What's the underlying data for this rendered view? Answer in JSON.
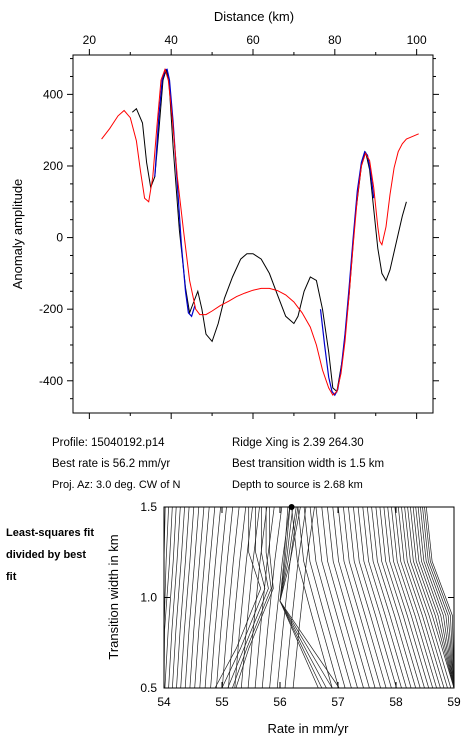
{
  "chart_data": [
    {
      "type": "line",
      "title": "",
      "xlabel": "Distance (km)",
      "ylabel": "Anomaly amplitude",
      "xlim": [
        16,
        104
      ],
      "ylim": [
        -490,
        510
      ],
      "xticks": [
        20,
        40,
        60,
        80,
        100
      ],
      "yticks": [
        -400,
        -200,
        0,
        200,
        400
      ],
      "x_axis_position": "top",
      "grid": false,
      "series": [
        {
          "color": "#000000",
          "x": [
            30.5,
            31.5,
            33,
            34,
            35,
            36,
            37,
            38,
            38.8,
            39.5,
            40.5,
            42,
            43.5,
            44.5,
            45.5,
            46.5,
            47.5,
            48.5,
            50,
            51.5,
            53,
            55,
            57,
            58.5,
            60,
            62,
            64,
            66,
            68,
            70,
            71,
            72.5,
            74,
            75.5,
            77,
            78.5,
            79.5,
            80.5,
            82,
            83.5,
            85,
            86.5,
            87.5,
            88.5,
            89.5,
            90.5,
            91.5,
            92.5,
            93.5,
            94.5,
            95.5,
            96.5,
            97.5
          ],
          "y": [
            350,
            360,
            320,
            210,
            140,
            170,
            300,
            440,
            470,
            430,
            250,
            20,
            -140,
            -210,
            -180,
            -150,
            -200,
            -270,
            -290,
            -240,
            -170,
            -110,
            -60,
            -45,
            -45,
            -60,
            -100,
            -160,
            -220,
            -240,
            -220,
            -150,
            -110,
            -120,
            -200,
            -320,
            -420,
            -430,
            -330,
            -160,
            60,
            200,
            240,
            190,
            80,
            -30,
            -100,
            -120,
            -90,
            -40,
            10,
            60,
            100
          ]
        },
        {
          "color": "#0000cc",
          "x": [
            36,
            37,
            37.8,
            38.5,
            39,
            39.6,
            40.5,
            41.5,
            42.5,
            43.5,
            44.2,
            45,
            45.8,
            76.5,
            77.5,
            78.5,
            79.3,
            80,
            80.7,
            81.5,
            82.5,
            83.5,
            84.5,
            85.5,
            86.5,
            87.3,
            88,
            88.8,
            89.5
          ],
          "y": [
            170,
            340,
            440,
            468,
            470,
            440,
            320,
            150,
            -20,
            -150,
            -210,
            -220,
            -190,
            -200,
            -300,
            -390,
            -430,
            -440,
            -425,
            -370,
            -270,
            -140,
            0,
            130,
            210,
            240,
            230,
            180,
            110
          ]
        },
        {
          "color": "#ff0000",
          "x": [
            23,
            25,
            27,
            28.5,
            30,
            31.5,
            32.5,
            33.5,
            34.5,
            35.5,
            36.5,
            37.5,
            38.5,
            39.3,
            40.3,
            41.5,
            43,
            44.5,
            46,
            47,
            48.5,
            50,
            52,
            54,
            56,
            58,
            60,
            62,
            64,
            66,
            68,
            70,
            72,
            74,
            75.5,
            77,
            78.5,
            79.5,
            80.5,
            81.5,
            82.5,
            83.5,
            84.5,
            85.5,
            86.5,
            87.5,
            88.5,
            89.5,
            90.5,
            91,
            91.5,
            92.5,
            93.5,
            94.5,
            95.5,
            96.5,
            97.5,
            98.5,
            99.5,
            100.5
          ],
          "y": [
            275,
            305,
            340,
            355,
            335,
            270,
            185,
            110,
            100,
            170,
            310,
            440,
            470,
            440,
            330,
            170,
            20,
            -120,
            -200,
            -215,
            -215,
            -205,
            -190,
            -178,
            -165,
            -155,
            -147,
            -142,
            -142,
            -148,
            -160,
            -180,
            -210,
            -250,
            -300,
            -370,
            -420,
            -440,
            -430,
            -380,
            -290,
            -160,
            -20,
            110,
            200,
            235,
            215,
            140,
            30,
            -10,
            -20,
            30,
            120,
            195,
            240,
            262,
            275,
            280,
            285,
            290
          ]
        }
      ]
    },
    {
      "type": "contour",
      "title": "Least-squares fit divided by best fit",
      "xlabel": "Rate in mm/yr",
      "ylabel": "Transition width in km",
      "xlim": [
        54,
        59
      ],
      "ylim": [
        0.5,
        1.5
      ],
      "xticks": [
        54,
        55,
        56,
        57,
        58,
        59
      ],
      "yticks": [
        0.5,
        1.0,
        1.5
      ],
      "yticklabels": [
        "0.5",
        "1.0",
        "1.5"
      ],
      "grid": false,
      "best_fit": {
        "rate": 56.2,
        "width": 1.5
      }
    }
  ],
  "info": {
    "profile": "Profile: 15040192.p14",
    "best_rate": "Best rate is 56.2 mm/yr",
    "proj_az": "Proj. Az: 3.0 deg. CW of N",
    "ridge_xing": "Ridge Xing is 2.39 264.30",
    "best_width": "Best transition width is 1.5 km",
    "depth": "Depth to source is   2.68 km"
  }
}
